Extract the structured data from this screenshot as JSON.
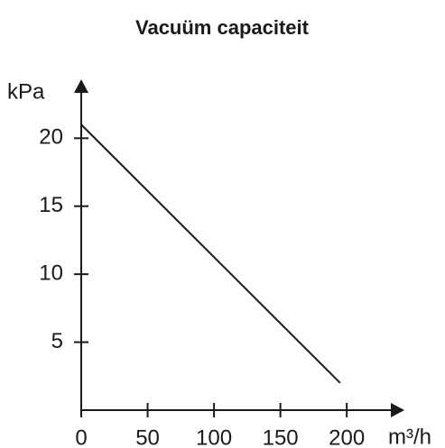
{
  "chart_data": {
    "type": "line",
    "title": "Vacuüm capaciteit",
    "y_label": "kPa",
    "x_label": "m³/h",
    "x": [
      0,
      195
    ],
    "values": [
      21,
      2
    ],
    "color": "#1a1a1a",
    "xlim": [
      0,
      240
    ],
    "ylim": [
      0,
      24
    ],
    "xticks": [
      0,
      50,
      100,
      150,
      200
    ],
    "yticks": [
      5,
      10,
      15,
      20
    ]
  }
}
